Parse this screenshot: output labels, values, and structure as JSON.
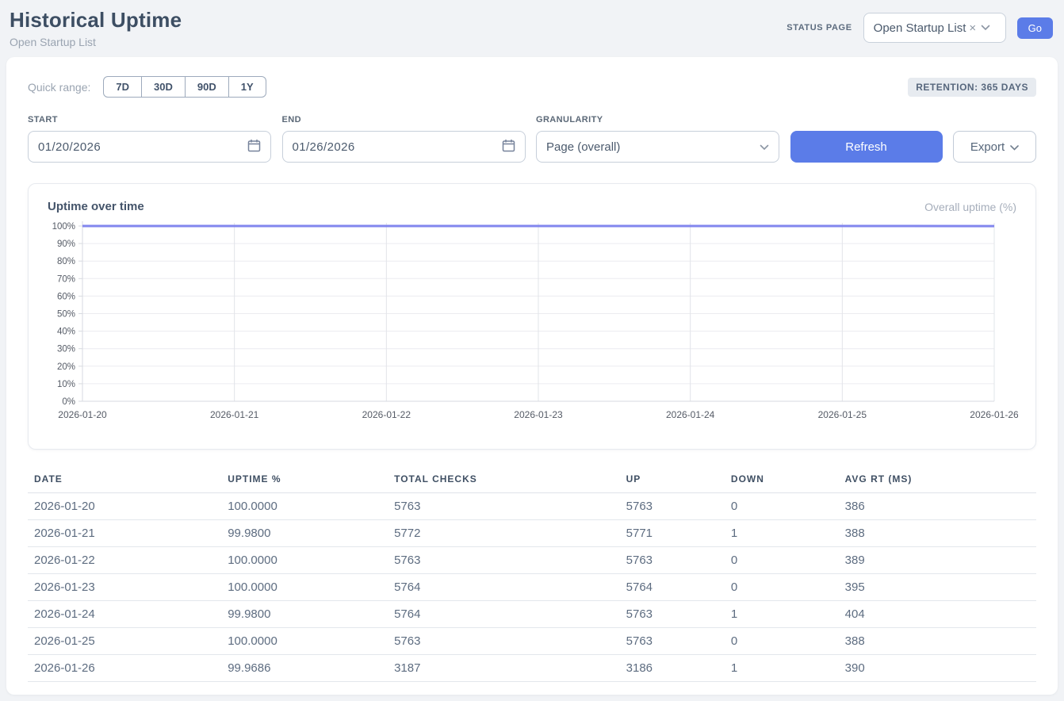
{
  "header": {
    "title": "Historical Uptime",
    "subtitle": "Open Startup List",
    "status_page_label": "STATUS PAGE",
    "status_page_value": "Open Startup List",
    "clear_icon": "×",
    "go_label": "Go"
  },
  "controls": {
    "quick_range_label": "Quick range:",
    "quick_ranges": [
      "7D",
      "30D",
      "90D",
      "1Y"
    ],
    "retention_badge": "RETENTION: 365 DAYS",
    "start_label": "START",
    "start_value": "01/20/2026",
    "end_label": "END",
    "end_value": "01/26/2026",
    "granularity_label": "GRANULARITY",
    "granularity_value": "Page (overall)",
    "refresh_label": "Refresh",
    "export_label": "Export"
  },
  "chart": {
    "title": "Uptime over time",
    "legend": "Overall uptime (%)"
  },
  "chart_data": {
    "type": "line",
    "x": [
      "2026-01-20",
      "2026-01-21",
      "2026-01-22",
      "2026-01-23",
      "2026-01-24",
      "2026-01-25",
      "2026-01-26"
    ],
    "series": [
      {
        "name": "Overall uptime (%)",
        "values": [
          100.0,
          99.98,
          100.0,
          100.0,
          99.98,
          100.0,
          99.9686
        ]
      }
    ],
    "y_ticks": [
      "0%",
      "10%",
      "20%",
      "30%",
      "40%",
      "50%",
      "60%",
      "70%",
      "80%",
      "90%",
      "100%"
    ],
    "ylim": [
      0,
      100
    ],
    "grid": true,
    "legend_position": "top-right",
    "line_color": "#8286ee",
    "axis_color": "#d7dae0",
    "hgrid_color": "#ececf0",
    "vgrid_color": "#e2e4e9",
    "tick_label_color": "#555b66"
  },
  "table": {
    "columns": [
      "DATE",
      "UPTIME %",
      "TOTAL CHECKS",
      "UP",
      "DOWN",
      "AVG RT (MS)"
    ],
    "rows": [
      [
        "2026-01-20",
        "100.0000",
        "5763",
        "5763",
        "0",
        "386"
      ],
      [
        "2026-01-21",
        "99.9800",
        "5772",
        "5771",
        "1",
        "388"
      ],
      [
        "2026-01-22",
        "100.0000",
        "5763",
        "5763",
        "0",
        "389"
      ],
      [
        "2026-01-23",
        "100.0000",
        "5764",
        "5764",
        "0",
        "395"
      ],
      [
        "2026-01-24",
        "99.9800",
        "5764",
        "5763",
        "1",
        "404"
      ],
      [
        "2026-01-25",
        "100.0000",
        "5763",
        "5763",
        "0",
        "388"
      ],
      [
        "2026-01-26",
        "99.9686",
        "3187",
        "3186",
        "1",
        "390"
      ]
    ]
  }
}
